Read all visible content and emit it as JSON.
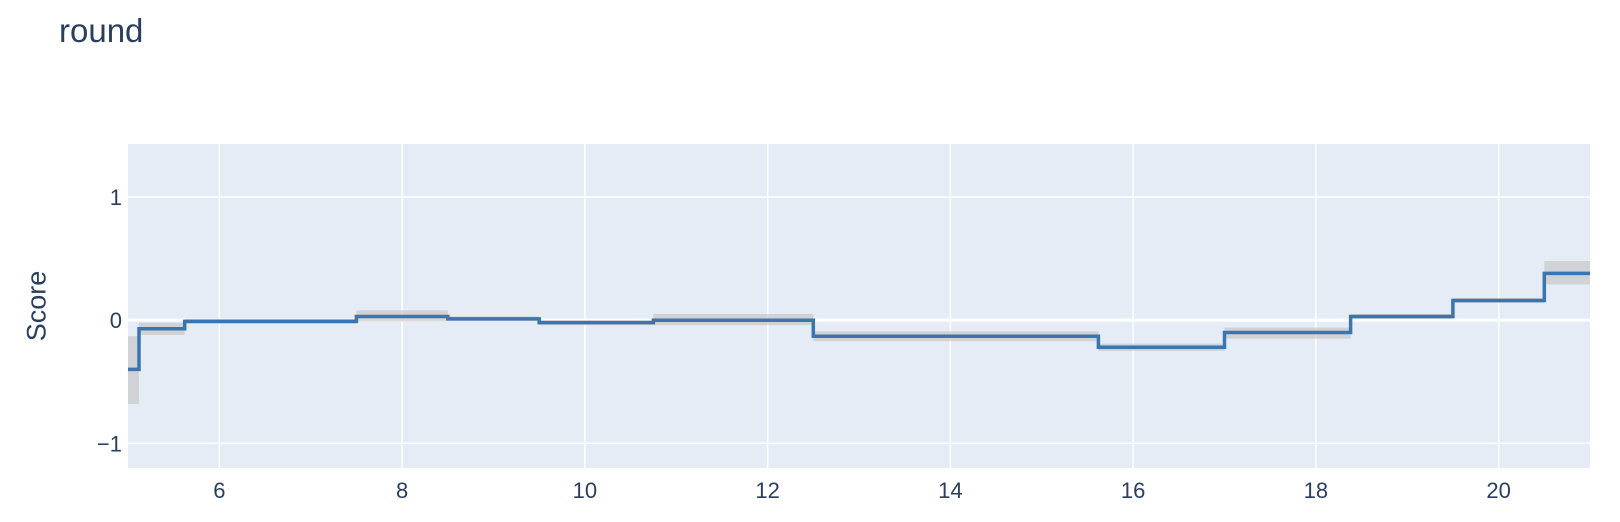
{
  "chart_data": {
    "type": "line",
    "line_shape": "step",
    "title": "round",
    "xlabel": "",
    "ylabel": "Score",
    "xlim": [
      5.0,
      21.0
    ],
    "ylim": [
      -1.2,
      1.43
    ],
    "grid": true,
    "x_ticks": [
      6,
      8,
      10,
      12,
      14,
      16,
      18,
      20
    ],
    "y_ticks": [
      1,
      0,
      -1
    ],
    "y_tick_labels": [
      "1",
      "0",
      "−1"
    ],
    "colors": {
      "plot_bg": "#e5ecf6",
      "grid": "#ffffff",
      "line": "#3b75af",
      "band": "#c8c8c8",
      "text": "#2a3f5f"
    },
    "series": [
      {
        "steps": [
          {
            "x0": 5.0,
            "x1": 5.12,
            "y": -0.4,
            "lo": -0.68,
            "hi": -0.13
          },
          {
            "x0": 5.12,
            "x1": 5.62,
            "y": -0.07,
            "lo": -0.12,
            "hi": -0.02
          },
          {
            "x0": 5.62,
            "x1": 7.5,
            "y": -0.01,
            "lo": -0.03,
            "hi": 0.01
          },
          {
            "x0": 7.5,
            "x1": 8.5,
            "y": 0.03,
            "lo": -0.01,
            "hi": 0.08
          },
          {
            "x0": 8.5,
            "x1": 9.5,
            "y": 0.01,
            "lo": -0.01,
            "hi": 0.03
          },
          {
            "x0": 9.5,
            "x1": 10.75,
            "y": -0.02,
            "lo": -0.04,
            "hi": 0.0
          },
          {
            "x0": 10.75,
            "x1": 12.5,
            "y": 0.0,
            "lo": -0.04,
            "hi": 0.05
          },
          {
            "x0": 12.5,
            "x1": 15.62,
            "y": -0.13,
            "lo": -0.17,
            "hi": -0.09
          },
          {
            "x0": 15.62,
            "x1": 17.0,
            "y": -0.22,
            "lo": -0.25,
            "hi": -0.19
          },
          {
            "x0": 17.0,
            "x1": 18.38,
            "y": -0.1,
            "lo": -0.15,
            "hi": -0.06
          },
          {
            "x0": 18.38,
            "x1": 19.5,
            "y": 0.03,
            "lo": 0.01,
            "hi": 0.05
          },
          {
            "x0": 19.5,
            "x1": 20.5,
            "y": 0.16,
            "lo": 0.14,
            "hi": 0.18
          },
          {
            "x0": 20.5,
            "x1": 21.0,
            "y": 0.38,
            "lo": 0.29,
            "hi": 0.48
          }
        ]
      }
    ]
  }
}
